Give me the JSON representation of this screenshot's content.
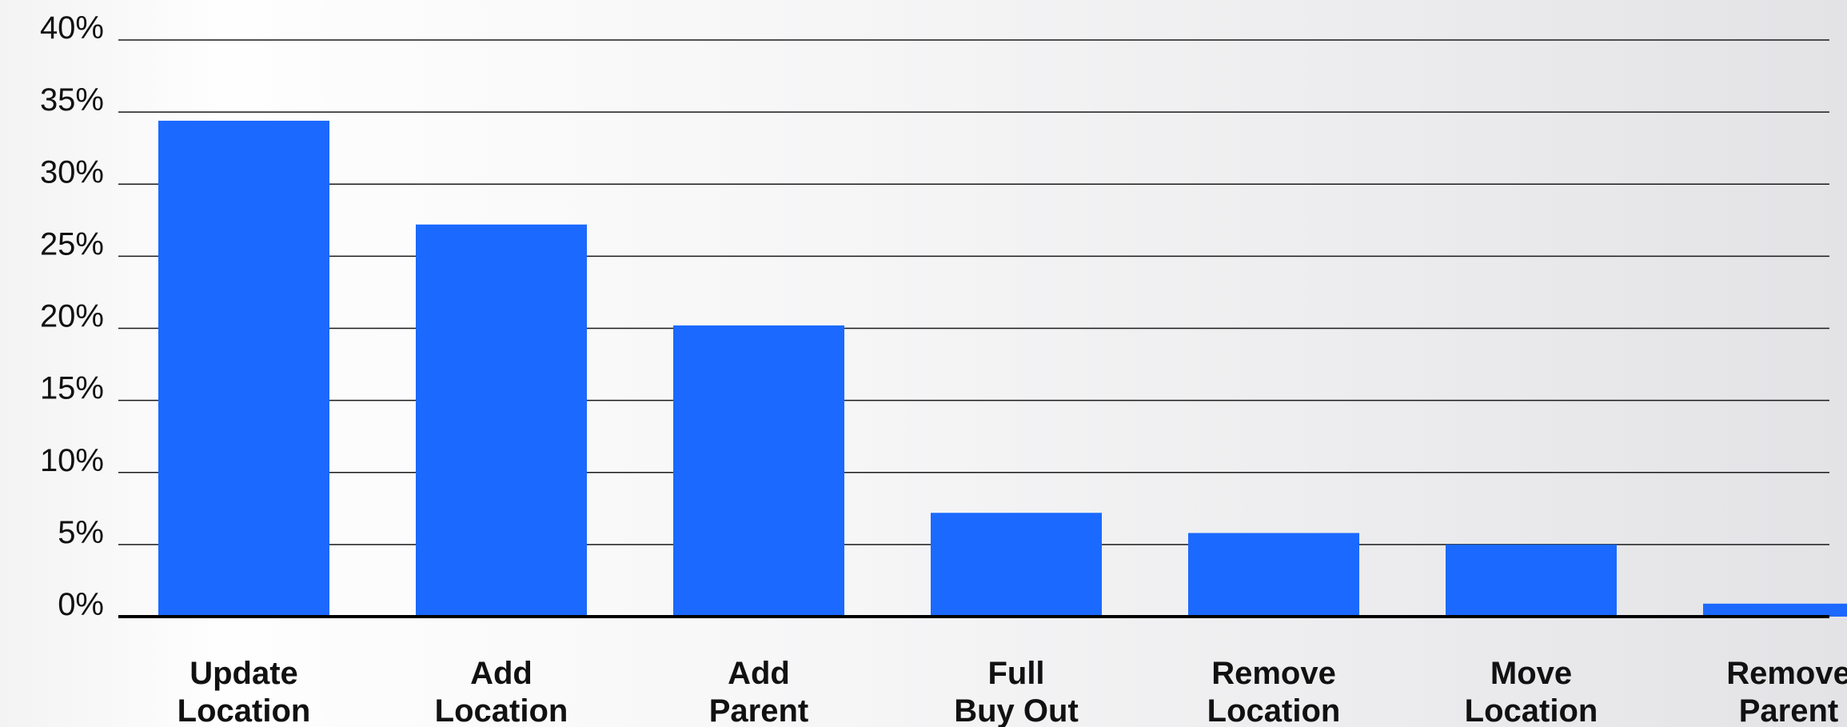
{
  "chart_data": {
    "type": "bar",
    "categories": [
      [
        "Update",
        "Location"
      ],
      [
        "Add",
        "Location"
      ],
      [
        "Add",
        "Parent"
      ],
      [
        "Full",
        "Buy Out"
      ],
      [
        "Remove",
        "Location"
      ],
      [
        "Move",
        "Location"
      ],
      [
        "Remove",
        "Parent"
      ]
    ],
    "values": [
      34.4,
      27.2,
      20.2,
      7.2,
      5.8,
      5.0,
      0.9
    ],
    "ylim": [
      0,
      40
    ],
    "yticks": [
      "0%",
      "5%",
      "10%",
      "15%",
      "20%",
      "25%",
      "30%",
      "35%",
      "40%"
    ],
    "title": "",
    "xlabel": "",
    "ylabel": "",
    "grid": true,
    "bar_color": "#1b69ff"
  }
}
